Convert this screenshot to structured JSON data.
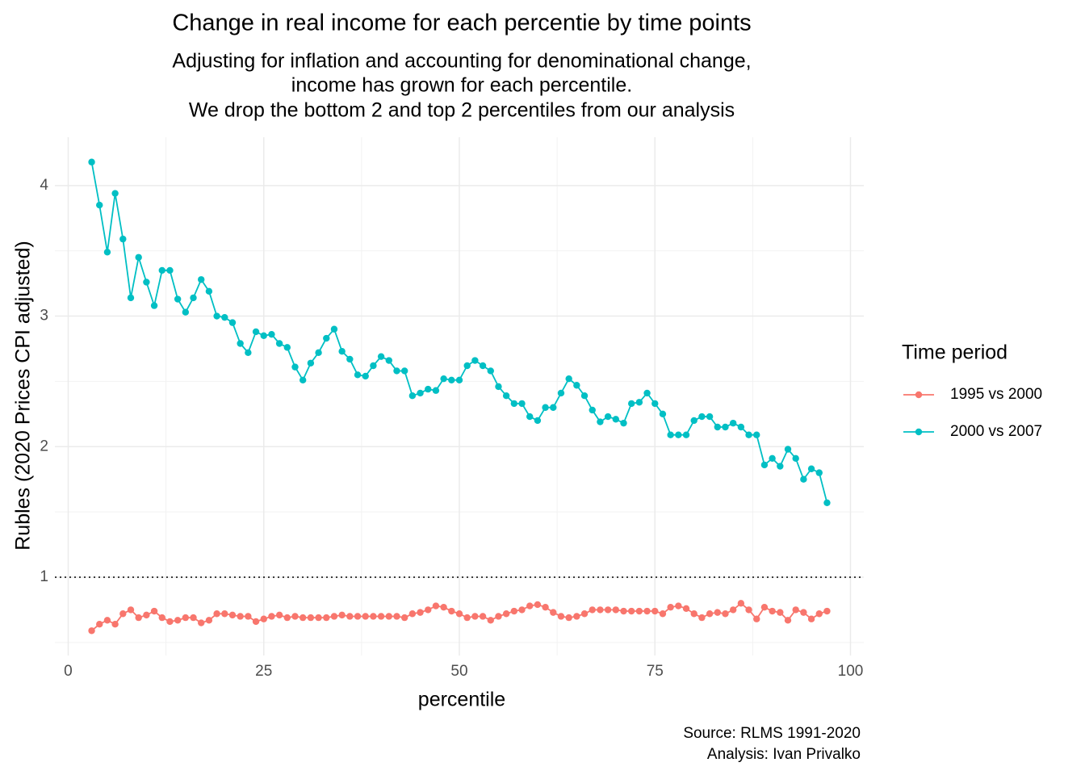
{
  "chart_data": {
    "type": "line",
    "title": "Change in real income for each percentie by time points",
    "subtitle": [
      "Adjusting for inflation and accounting for denominational change,",
      "income has grown for each percentile.",
      "We drop the bottom 2 and top 2 percentiles from our analysis"
    ],
    "caption": [
      "Source: RLMS 1991-2020",
      "Analysis: Ivan Privalko"
    ],
    "x_label": "percentile",
    "y_label": "Rubles (2020 Prices CPI adjusted)",
    "legend_title": "Time period",
    "legend_position": "right",
    "grid": true,
    "hline": 1,
    "xlim": [
      -1.7,
      101.7
    ],
    "ylim": [
      0.4,
      4.37
    ],
    "xticks": [
      0,
      25,
      50,
      75,
      100
    ],
    "yticks": [
      1,
      2,
      3,
      4
    ],
    "xminor": [
      12.5,
      37.5,
      62.5,
      87.5
    ],
    "yminor": [
      0.5,
      1.5,
      2.5,
      3.5
    ],
    "x": [
      3,
      4,
      5,
      6,
      7,
      8,
      9,
      10,
      11,
      12,
      13,
      14,
      15,
      16,
      17,
      18,
      19,
      20,
      21,
      22,
      23,
      24,
      25,
      26,
      27,
      28,
      29,
      30,
      31,
      32,
      33,
      34,
      35,
      36,
      37,
      38,
      39,
      40,
      41,
      42,
      43,
      44,
      45,
      46,
      47,
      48,
      49,
      50,
      51,
      52,
      53,
      54,
      55,
      56,
      57,
      58,
      59,
      60,
      61,
      62,
      63,
      64,
      65,
      66,
      67,
      68,
      69,
      70,
      71,
      72,
      73,
      74,
      75,
      76,
      77,
      78,
      79,
      80,
      81,
      82,
      83,
      84,
      85,
      86,
      87,
      88,
      89,
      90,
      91,
      92,
      93,
      94,
      95,
      96,
      97
    ],
    "series": [
      {
        "name": "1995 vs 2000",
        "color": "#F8766D",
        "values": [
          0.59,
          0.64,
          0.67,
          0.64,
          0.72,
          0.75,
          0.69,
          0.71,
          0.74,
          0.69,
          0.66,
          0.67,
          0.69,
          0.69,
          0.65,
          0.67,
          0.72,
          0.72,
          0.71,
          0.7,
          0.7,
          0.66,
          0.68,
          0.7,
          0.71,
          0.69,
          0.7,
          0.69,
          0.69,
          0.69,
          0.69,
          0.7,
          0.71,
          0.7,
          0.7,
          0.7,
          0.7,
          0.7,
          0.7,
          0.7,
          0.69,
          0.72,
          0.73,
          0.75,
          0.78,
          0.77,
          0.74,
          0.72,
          0.69,
          0.7,
          0.7,
          0.67,
          0.7,
          0.72,
          0.74,
          0.75,
          0.78,
          0.79,
          0.77,
          0.73,
          0.7,
          0.69,
          0.7,
          0.72,
          0.75,
          0.75,
          0.75,
          0.75,
          0.74,
          0.74,
          0.74,
          0.74,
          0.74,
          0.72,
          0.77,
          0.78,
          0.76,
          0.72,
          0.69,
          0.72,
          0.73,
          0.72,
          0.75,
          0.8,
          0.75,
          0.68,
          0.77,
          0.74,
          0.73,
          0.67,
          0.75,
          0.73,
          0.68,
          0.72,
          0.74
        ]
      },
      {
        "name": "2000 vs 2007",
        "color": "#00BFC4",
        "values": [
          4.18,
          3.85,
          3.49,
          3.94,
          3.59,
          3.14,
          3.45,
          3.26,
          3.08,
          3.35,
          3.35,
          3.13,
          3.03,
          3.14,
          3.28,
          3.19,
          3.0,
          2.99,
          2.95,
          2.79,
          2.72,
          2.88,
          2.85,
          2.86,
          2.79,
          2.76,
          2.61,
          2.51,
          2.64,
          2.72,
          2.83,
          2.9,
          2.73,
          2.67,
          2.55,
          2.54,
          2.62,
          2.69,
          2.66,
          2.58,
          2.58,
          2.39,
          2.41,
          2.44,
          2.43,
          2.52,
          2.51,
          2.51,
          2.62,
          2.66,
          2.62,
          2.58,
          2.46,
          2.39,
          2.33,
          2.33,
          2.23,
          2.2,
          2.3,
          2.3,
          2.41,
          2.52,
          2.47,
          2.39,
          2.28,
          2.19,
          2.23,
          2.21,
          2.18,
          2.33,
          2.34,
          2.41,
          2.33,
          2.25,
          2.09,
          2.09,
          2.09,
          2.2,
          2.23,
          2.23,
          2.15,
          2.15,
          2.18,
          2.15,
          2.09,
          2.09,
          1.86,
          1.91,
          1.85,
          1.98,
          1.91,
          1.75,
          1.83,
          1.8,
          1.57
        ]
      }
    ]
  }
}
